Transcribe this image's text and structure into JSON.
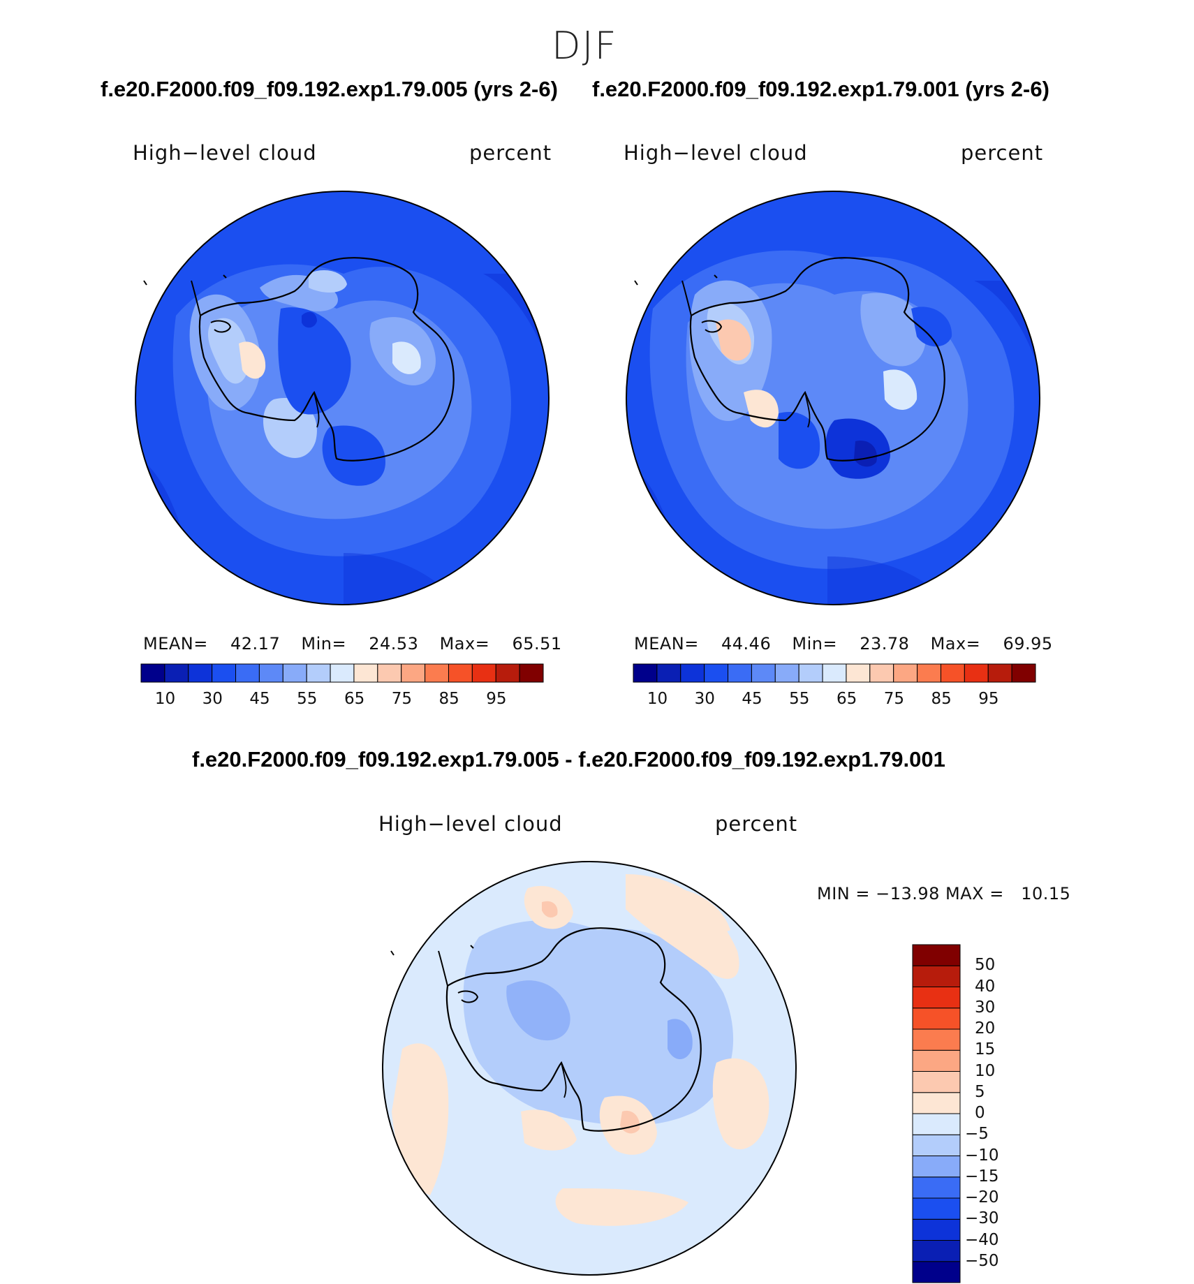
{
  "season_title": "DJF",
  "top_titles": {
    "left": "f.e20.F2000.f09_f09.192.exp1.79.005 (yrs 2-6)",
    "right": "f.e20.F2000.f09_f09.192.exp1.79.001 (yrs 2-6)"
  },
  "diff_title": "f.e20.F2000.f09_f09.192.exp1.79.005 - f.e20.F2000.f09_f09.192.exp1.79.001",
  "panels": {
    "left": {
      "variable": "High−level cloud",
      "units": "percent",
      "stats": {
        "mean_label": "MEAN=",
        "mean": "42.17",
        "min_label": "Min=",
        "min": "24.53",
        "max_label": "Max=",
        "max": "65.51"
      }
    },
    "right": {
      "variable": "High−level cloud",
      "units": "percent",
      "stats": {
        "mean_label": "MEAN=",
        "mean": "44.46",
        "min_label": "Min=",
        "min": "23.78",
        "max_label": "Max=",
        "max": "69.95"
      }
    },
    "diff": {
      "variable": "High−level cloud",
      "units": "percent",
      "stats_text": "MIN = −13.98 MAX =   10.15"
    }
  },
  "colorbar_abs": {
    "colors": [
      "#00008b",
      "#0a1fb4",
      "#0d33d9",
      "#1b4ff0",
      "#3a6cf5",
      "#5d89f7",
      "#88abf9",
      "#b3cdfb",
      "#daeafd",
      "#fde6d4",
      "#fcc9b0",
      "#fca783",
      "#fb7c4f",
      "#f65228",
      "#e83013",
      "#b71c0c",
      "#800000"
    ],
    "tick_labels": [
      "10",
      "30",
      "45",
      "55",
      "65",
      "75",
      "85",
      "95"
    ]
  },
  "colorbar_diff": {
    "colors": [
      "#00008b",
      "#0a1fb4",
      "#0d33d9",
      "#1b4ff0",
      "#3a6cf5",
      "#88abf9",
      "#b3cdfb",
      "#daeafd",
      "#fde6d4",
      "#fcc9b0",
      "#fca783",
      "#fb7c4f",
      "#f65228",
      "#e83013",
      "#b71c0c",
      "#800000"
    ],
    "tick_labels": [
      "50",
      "40",
      "30",
      "20",
      "15",
      "10",
      "5",
      "0",
      "−5",
      "−10",
      "−15",
      "−20",
      "−30",
      "−40",
      "−50"
    ]
  }
}
